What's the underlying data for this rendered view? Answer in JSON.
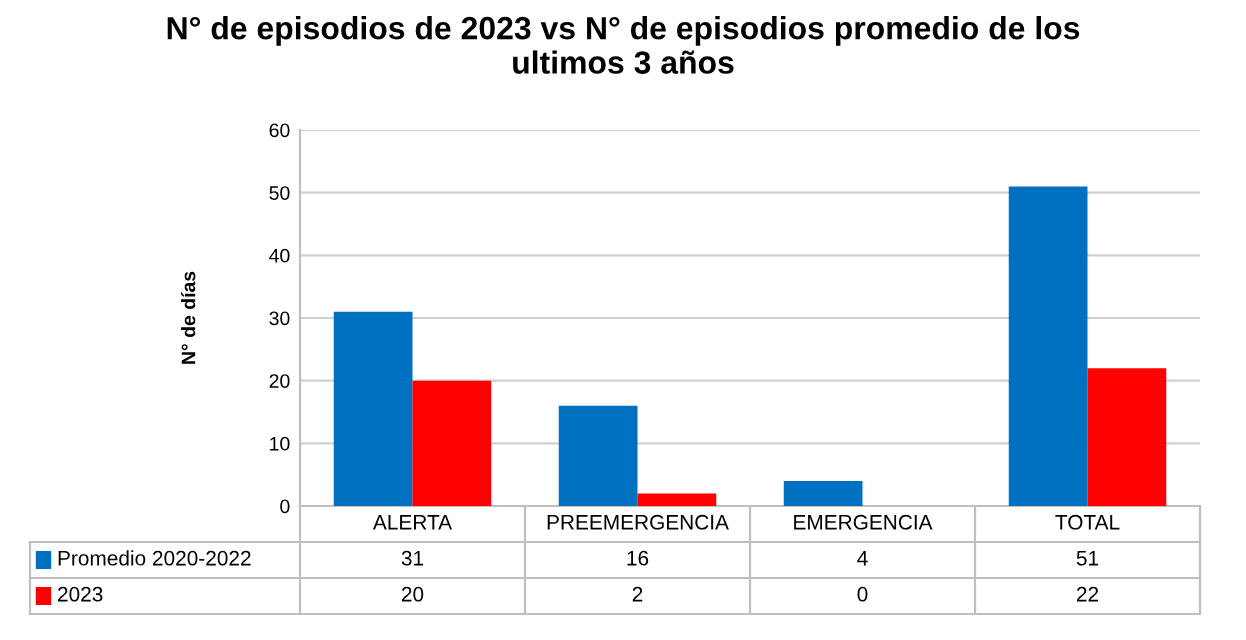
{
  "chart_data": {
    "type": "bar",
    "title": "N° de episodios de 2023 vs N° de episodios promedio de los\nultimos 3 años",
    "ylabel": "N° de días",
    "categories": [
      "ALERTA",
      "PREEMERGENCIA",
      "EMERGENCIA",
      "TOTAL"
    ],
    "series": [
      {
        "name": "Promedio 2020-2022",
        "color": "#0070c0",
        "values": [
          31,
          16,
          4,
          51
        ]
      },
      {
        "name": "2023",
        "color": "#ff0000",
        "values": [
          20,
          2,
          0,
          22
        ]
      }
    ],
    "ylim": [
      0,
      60
    ],
    "yticks": [
      0,
      10,
      20,
      30,
      40,
      50,
      60
    ],
    "grid": "y",
    "data_labels": true,
    "legend": "bottom"
  }
}
